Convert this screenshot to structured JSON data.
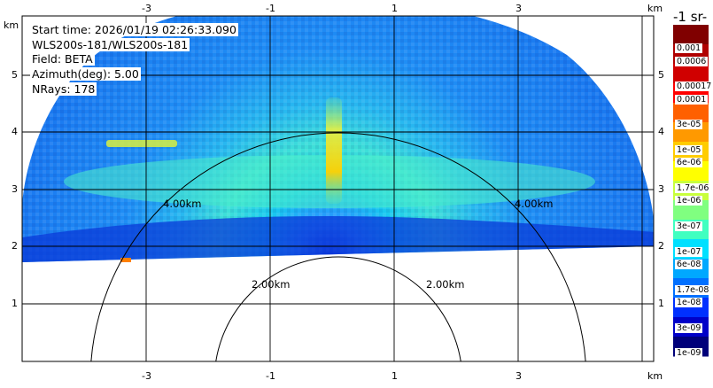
{
  "info": {
    "start_time": "Start time: 2026/01/19 02:26:33.090",
    "instrument": "WLS200s-181/WLS200s-181",
    "field": "Field: BETA",
    "azimuth": "Azimuth(deg): 5.00",
    "nrays": "NRays: 178"
  },
  "axes": {
    "x_unit": "km",
    "y_unit": "km",
    "x_ticks": [
      "-3",
      "-1",
      "1",
      "3"
    ],
    "y_ticks": [
      "5",
      "4",
      "3",
      "2",
      "1"
    ]
  },
  "range_rings": {
    "outer_label": "4.00km",
    "inner_label": "2.00km"
  },
  "colorbar": {
    "title": "-1 sr-",
    "labels": [
      "0.001",
      "0.0006",
      "0.00017",
      "0.0001",
      "3e-05",
      "1e-05",
      "6e-06",
      "1.7e-06",
      "1e-06",
      "3e-07",
      "1e-07",
      "6e-08",
      "1.7e-08",
      "1e-08",
      "3e-09",
      "1e-09"
    ],
    "colors": [
      "#800000",
      "#b00000",
      "#d00000",
      "#ff0000",
      "#ff6000",
      "#ff9900",
      "#ffcc00",
      "#ffff00",
      "#c8ff3c",
      "#80ff80",
      "#40ffc0",
      "#00e0ff",
      "#00a8ff",
      "#0070ff",
      "#0030ff",
      "#0000c8",
      "#00007a"
    ]
  }
}
